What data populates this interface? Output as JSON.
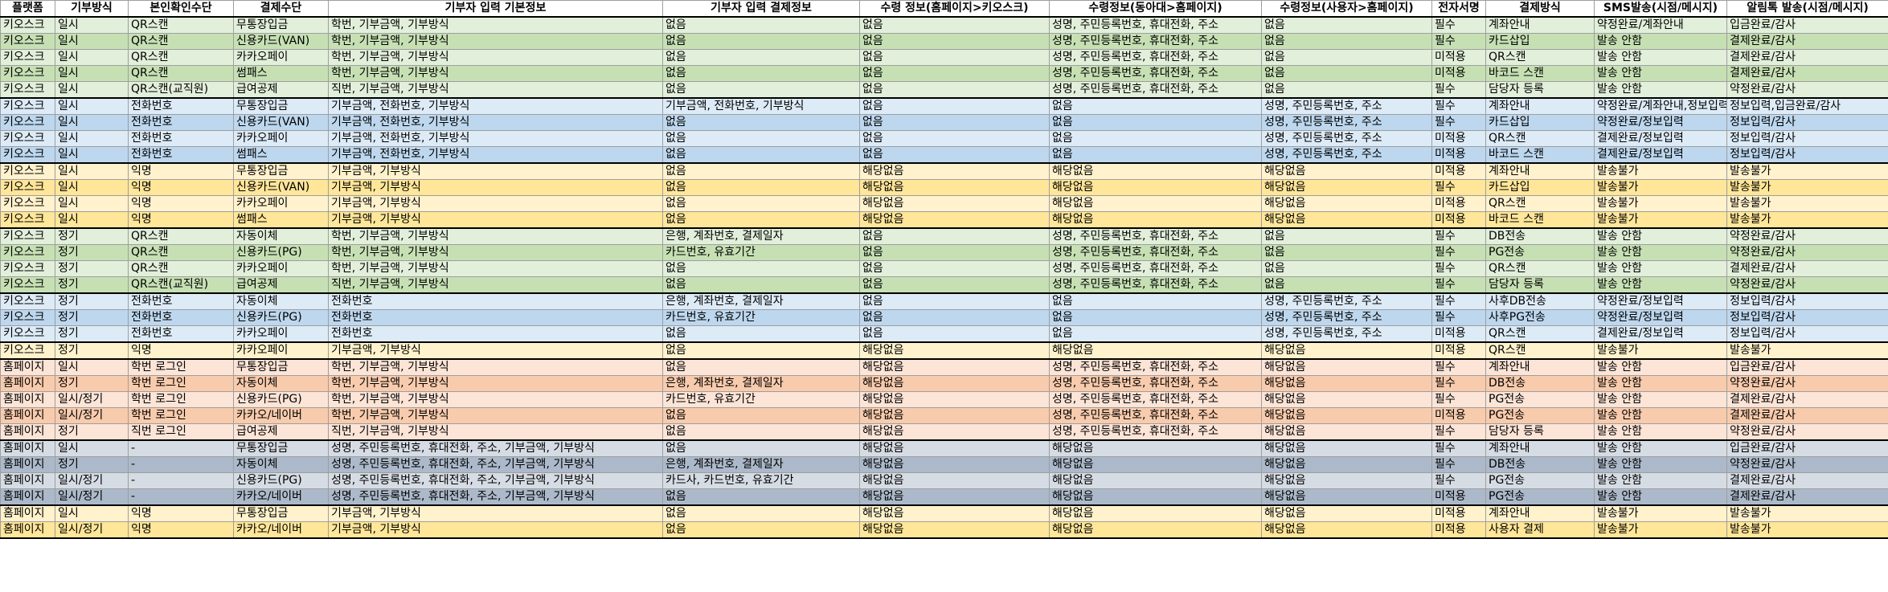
{
  "headers": [
    "플랫폼",
    "기부방식",
    "본인확인수단",
    "결제수단",
    "기부자 입력 기본정보",
    "기부자 입력 결제정보",
    "수령 정보(홈페이지>키오스크)",
    "수령정보(동아대>홈페이지)",
    "수령정보(사용자>홈페이지)",
    "전자서명",
    "결제방식",
    "SMS발송(시점/메시지)",
    "알림톡 발송(시점/메시지)"
  ],
  "palette": {
    "green_light": "#e2efda",
    "green": "#c6e0b4",
    "blue_light": "#ddebf7",
    "blue": "#bdd7ee",
    "yellow_light": "#fff2cc",
    "yellow": "#ffe699",
    "orange_light": "#fce4d6",
    "orange": "#f8cbad",
    "gray_light": "#d6dce4",
    "gray": "#acb9ca",
    "header": "#ffffff"
  },
  "rows": [
    {
      "bg": "green_light",
      "cells": [
        "키오스크",
        "일시",
        "QR스캔",
        "무통장입금",
        "학번, 기부금액, 기부방식",
        "없음",
        "없음",
        "성명, 주민등록번호, 휴대전화, 주소",
        "없음",
        "필수",
        "계좌안내",
        "약정완료/계좌안내",
        "입금완료/감사"
      ]
    },
    {
      "bg": "green",
      "cells": [
        "키오스크",
        "일시",
        "QR스캔",
        "신용카드(VAN)",
        "학번, 기부금액, 기부방식",
        "없음",
        "없음",
        "성명, 주민등록번호, 휴대전화, 주소",
        "없음",
        "필수",
        "카드삽입",
        "발송 안함",
        "결제완료/감사"
      ]
    },
    {
      "bg": "green_light",
      "cells": [
        "키오스크",
        "일시",
        "QR스캔",
        "카카오페이",
        "학번, 기부금액, 기부방식",
        "없음",
        "없음",
        "성명, 주민등록번호, 휴대전화, 주소",
        "없음",
        "미적용",
        "QR스캔",
        "발송 안함",
        "결제완료/감사"
      ]
    },
    {
      "bg": "green",
      "cells": [
        "키오스크",
        "일시",
        "QR스캔",
        "썸패스",
        "학번, 기부금액, 기부방식",
        "없음",
        "없음",
        "성명, 주민등록번호, 휴대전화, 주소",
        "없음",
        "미적용",
        "바코드 스캔",
        "발송 안함",
        "결제완료/감사"
      ]
    },
    {
      "bg": "green_light",
      "cells": [
        "키오스크",
        "일시",
        "QR스캔(교직원)",
        "급여공제",
        "직번, 기부금액, 기부방식",
        "없음",
        "없음",
        "성명, 주민등록번호, 휴대전화, 주소",
        "없음",
        "필수",
        "담당자 등록",
        "발송 안함",
        "약정완료/감사"
      ]
    },
    {
      "bg": "blue_light",
      "sep": "top",
      "cells": [
        "키오스크",
        "일시",
        "전화번호",
        "무통장입금",
        "기부금액, 전화번호, 기부방식",
        "기부금액, 전화번호, 기부방식",
        "없음",
        "없음",
        "성명, 주민등록번호, 주소",
        "필수",
        "계좌안내",
        "약정완료/계좌안내,정보입력",
        "정보입력,입금완료/감사"
      ]
    },
    {
      "bg": "blue",
      "cells": [
        "키오스크",
        "일시",
        "전화번호",
        "신용카드(VAN)",
        "기부금액, 전화번호, 기부방식",
        "없음",
        "없음",
        "없음",
        "성명, 주민등록번호, 주소",
        "필수",
        "카드삽입",
        "약정완료/정보입력",
        "정보입력/감사"
      ]
    },
    {
      "bg": "blue_light",
      "cells": [
        "키오스크",
        "일시",
        "전화번호",
        "카카오페이",
        "기부금액, 전화번호, 기부방식",
        "없음",
        "없음",
        "없음",
        "성명, 주민등록번호, 주소",
        "미적용",
        "QR스캔",
        "결제완료/정보입력",
        "정보입력/감사"
      ]
    },
    {
      "bg": "blue",
      "cells": [
        "키오스크",
        "일시",
        "전화번호",
        "썸패스",
        "기부금액, 전화번호, 기부방식",
        "없음",
        "없음",
        "없음",
        "성명, 주민등록번호, 주소",
        "미적용",
        "바코드 스캔",
        "결제완료/정보입력",
        "정보입력/감사"
      ]
    },
    {
      "bg": "yellow_light",
      "sep": "top",
      "cells": [
        "키오스크",
        "일시",
        "익명",
        "무통장입금",
        "기부금액, 기부방식",
        "없음",
        "해당없음",
        "해당없음",
        "해당없음",
        "미적용",
        "계좌안내",
        "발송불가",
        "발송불가"
      ]
    },
    {
      "bg": "yellow",
      "cells": [
        "키오스크",
        "일시",
        "익명",
        "신용카드(VAN)",
        "기부금액, 기부방식",
        "없음",
        "해당없음",
        "해당없음",
        "해당없음",
        "필수",
        "카드삽입",
        "발송불가",
        "발송불가"
      ]
    },
    {
      "bg": "yellow_light",
      "cells": [
        "키오스크",
        "일시",
        "익명",
        "카카오페이",
        "기부금액, 기부방식",
        "없음",
        "해당없음",
        "해당없음",
        "해당없음",
        "미적용",
        "QR스캔",
        "발송불가",
        "발송불가"
      ]
    },
    {
      "bg": "yellow",
      "cells": [
        "키오스크",
        "일시",
        "익명",
        "썸패스",
        "기부금액, 기부방식",
        "없음",
        "해당없음",
        "해당없음",
        "해당없음",
        "미적용",
        "바코드 스캔",
        "발송불가",
        "발송불가"
      ]
    },
    {
      "bg": "green_light",
      "sep": "top",
      "cells": [
        "키오스크",
        "정기",
        "QR스캔",
        "자동이체",
        "학번, 기부금액, 기부방식",
        "은행, 계좌번호, 결제일자",
        "없음",
        "성명, 주민등록번호, 휴대전화, 주소",
        "없음",
        "필수",
        "DB전송",
        "발송 안함",
        "약정완료/감사"
      ]
    },
    {
      "bg": "green",
      "cells": [
        "키오스크",
        "정기",
        "QR스캔",
        "신용카드(PG)",
        "학번, 기부금액, 기부방식",
        "카드번호, 유효기간",
        "없음",
        "성명, 주민등록번호, 휴대전화, 주소",
        "없음",
        "필수",
        "PG전송",
        "발송 안함",
        "약정완료/감사"
      ]
    },
    {
      "bg": "green_light",
      "cells": [
        "키오스크",
        "정기",
        "QR스캔",
        "카카오페이",
        "학번, 기부금액, 기부방식",
        "없음",
        "없음",
        "성명, 주민등록번호, 휴대전화, 주소",
        "없음",
        "필수",
        "QR스캔",
        "발송 안함",
        "결제완료/감사"
      ]
    },
    {
      "bg": "green",
      "cells": [
        "키오스크",
        "정기",
        "QR스캔(교직원)",
        "급여공제",
        "직번, 기부금액, 기부방식",
        "없음",
        "없음",
        "성명, 주민등록번호, 휴대전화, 주소",
        "없음",
        "필수",
        "담당자 등록",
        "발송 안함",
        "약정완료/감사"
      ]
    },
    {
      "bg": "blue_light",
      "sep": "top",
      "cells": [
        "키오스크",
        "정기",
        "전화번호",
        "자동이체",
        "전화번호",
        "은행, 계좌번호, 결제일자",
        "없음",
        "없음",
        "성명, 주민등록번호, 주소",
        "필수",
        "사후DB전송",
        "약정완료/정보입력",
        "정보입력/감사"
      ]
    },
    {
      "bg": "blue",
      "cells": [
        "키오스크",
        "정기",
        "전화번호",
        "신용카드(PG)",
        "전화번호",
        "카드번호, 유효기간",
        "없음",
        "없음",
        "성명, 주민등록번호, 주소",
        "필수",
        "사후PG전송",
        "약정완료/정보입력",
        "정보입력/감사"
      ]
    },
    {
      "bg": "blue_light",
      "cells": [
        "키오스크",
        "정기",
        "전화번호",
        "카카오페이",
        "전화번호",
        "없음",
        "없음",
        "없음",
        "성명, 주민등록번호, 주소",
        "미적용",
        "QR스캔",
        "결제완료/정보입력",
        "정보입력/감사"
      ]
    },
    {
      "bg": "yellow_light",
      "sep": "top",
      "cells": [
        "키오스크",
        "정기",
        "익명",
        "카카오페이",
        "기부금액, 기부방식",
        "없음",
        "해당없음",
        "해당없음",
        "해당없음",
        "미적용",
        "QR스캔",
        "발송불가",
        "발송불가"
      ]
    },
    {
      "bg": "orange_light",
      "sep": "top",
      "cells": [
        "홈페이지",
        "일시",
        "학번 로그인",
        "무통장입금",
        "학번, 기부금액, 기부방식",
        "없음",
        "해당없음",
        "성명, 주민등록번호, 휴대전화, 주소",
        "해당없음",
        "필수",
        "계좌안내",
        "발송 안함",
        "입금완료/감사"
      ]
    },
    {
      "bg": "orange",
      "cells": [
        "홈페이지",
        "정기",
        "학번 로그인",
        "자동이체",
        "학번, 기부금액, 기부방식",
        "은행, 계좌번호, 결제일자",
        "해당없음",
        "성명, 주민등록번호, 휴대전화, 주소",
        "해당없음",
        "필수",
        "DB전송",
        "발송 안함",
        "약정완료/감사"
      ]
    },
    {
      "bg": "orange_light",
      "cells": [
        "홈페이지",
        "일시/정기",
        "학번 로그인",
        "신용카드(PG)",
        "학번, 기부금액, 기부방식",
        "카드번호, 유효기간",
        "해당없음",
        "성명, 주민등록번호, 휴대전화, 주소",
        "해당없음",
        "필수",
        "PG전송",
        "발송 안함",
        "결제완료/감사"
      ]
    },
    {
      "bg": "orange",
      "cells": [
        "홈페이지",
        "일시/정기",
        "학번 로그인",
        "카카오/네이버",
        "학번, 기부금액, 기부방식",
        "없음",
        "해당없음",
        "성명, 주민등록번호, 휴대전화, 주소",
        "해당없음",
        "미적용",
        "PG전송",
        "발송 안함",
        "결제완료/감사"
      ]
    },
    {
      "bg": "orange_light",
      "cells": [
        "홈페이지",
        "정기",
        "직번 로그인",
        "급여공제",
        "직번, 기부금액, 기부방식",
        "없음",
        "해당없음",
        "성명, 주민등록번호, 휴대전화, 주소",
        "해당없음",
        "필수",
        "담당자 등록",
        "발송 안함",
        "약정완료/감사"
      ]
    },
    {
      "bg": "gray_light",
      "sep": "top",
      "cells": [
        "홈페이지",
        "일시",
        "-",
        "무통장입금",
        "성명, 주민등록번호, 휴대전화, 주소, 기부금액, 기부방식",
        "없음",
        "해당없음",
        "해당없음",
        "해당없음",
        "필수",
        "계좌안내",
        "발송 안함",
        "입금완료/감사"
      ]
    },
    {
      "bg": "gray",
      "cells": [
        "홈페이지",
        "정기",
        "-",
        "자동이체",
        "성명, 주민등록번호, 휴대전화, 주소, 기부금액, 기부방식",
        "은행, 계좌번호, 결제일자",
        "해당없음",
        "해당없음",
        "해당없음",
        "필수",
        "DB전송",
        "발송 안함",
        "약정완료/감사"
      ]
    },
    {
      "bg": "gray_light",
      "cells": [
        "홈페이지",
        "일시/정기",
        "-",
        "신용카드(PG)",
        "성명, 주민등록번호, 휴대전화, 주소, 기부금액, 기부방식",
        "카드사, 카드번호, 유효기간",
        "해당없음",
        "해당없음",
        "해당없음",
        "필수",
        "PG전송",
        "발송 안함",
        "결제완료/감사"
      ]
    },
    {
      "bg": "gray",
      "cells": [
        "홈페이지",
        "일시/정기",
        "-",
        "카카오/네이버",
        "성명, 주민등록번호, 휴대전화, 주소, 기부금액, 기부방식",
        "없음",
        "해당없음",
        "해당없음",
        "해당없음",
        "미적용",
        "PG전송",
        "발송 안함",
        "결제완료/감사"
      ]
    },
    {
      "bg": "yellow_light",
      "sep": "top",
      "cells": [
        "홈페이지",
        "일시",
        "익명",
        "무통장입금",
        "기부금액, 기부방식",
        "없음",
        "해당없음",
        "해당없음",
        "해당없음",
        "미적용",
        "계좌안내",
        "발송불가",
        "발송불가"
      ]
    },
    {
      "bg": "yellow",
      "sep": "bottom",
      "cells": [
        "홈페이지",
        "일시/정기",
        "익명",
        "카카오/네이버",
        "기부금액, 기부방식",
        "없음",
        "해당없음",
        "해당없음",
        "해당없음",
        "미적용",
        "사용자 결제",
        "발송불가",
        "발송불가"
      ]
    }
  ]
}
